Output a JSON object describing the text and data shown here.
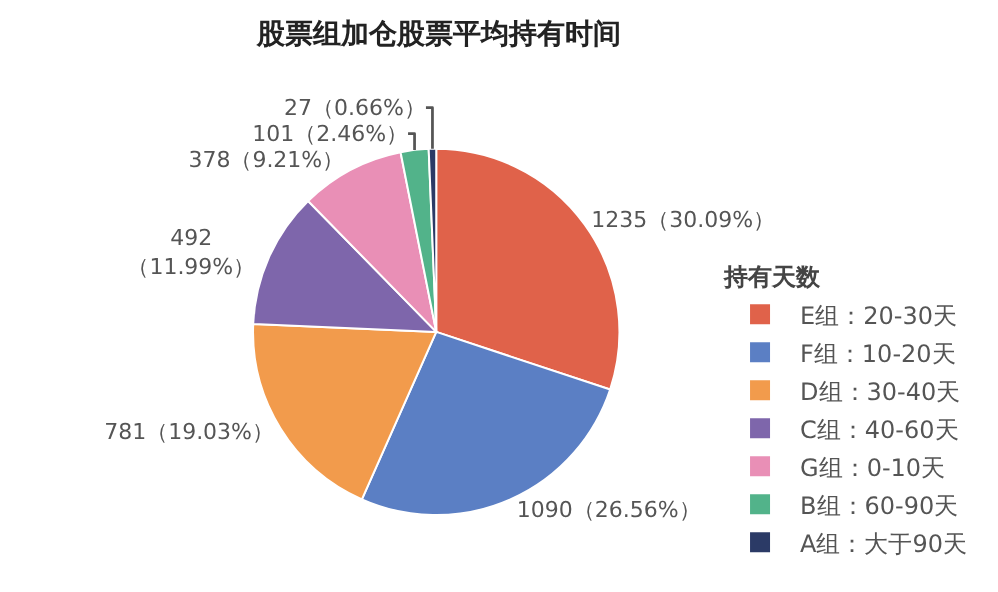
{
  "chart_data": {
    "type": "pie",
    "title": "股票组加仓股票平均持有时间",
    "legend_title": "持有天数",
    "legend": "right",
    "categories": [
      "E组：20-30天",
      "F组：10-20天",
      "D组：30-40天",
      "C组：40-60天",
      "G组：0-10天",
      "B组：60-90天",
      "A组：大于90天"
    ],
    "values": [
      1235,
      1090,
      781,
      492,
      378,
      101,
      27
    ],
    "value_labels": [
      "1235（30.09%）",
      "1090（26.56%）",
      "781（19.03%）",
      "492\n（11.99%）",
      "378（9.21%）",
      "101（2.46%）",
      "27（0.66%）"
    ],
    "colors": [
      "#e0624a",
      "#5b7fc4",
      "#f29b4c",
      "#7e66ab",
      "#e98fb6",
      "#52b38a",
      "#2b3a66"
    ]
  }
}
